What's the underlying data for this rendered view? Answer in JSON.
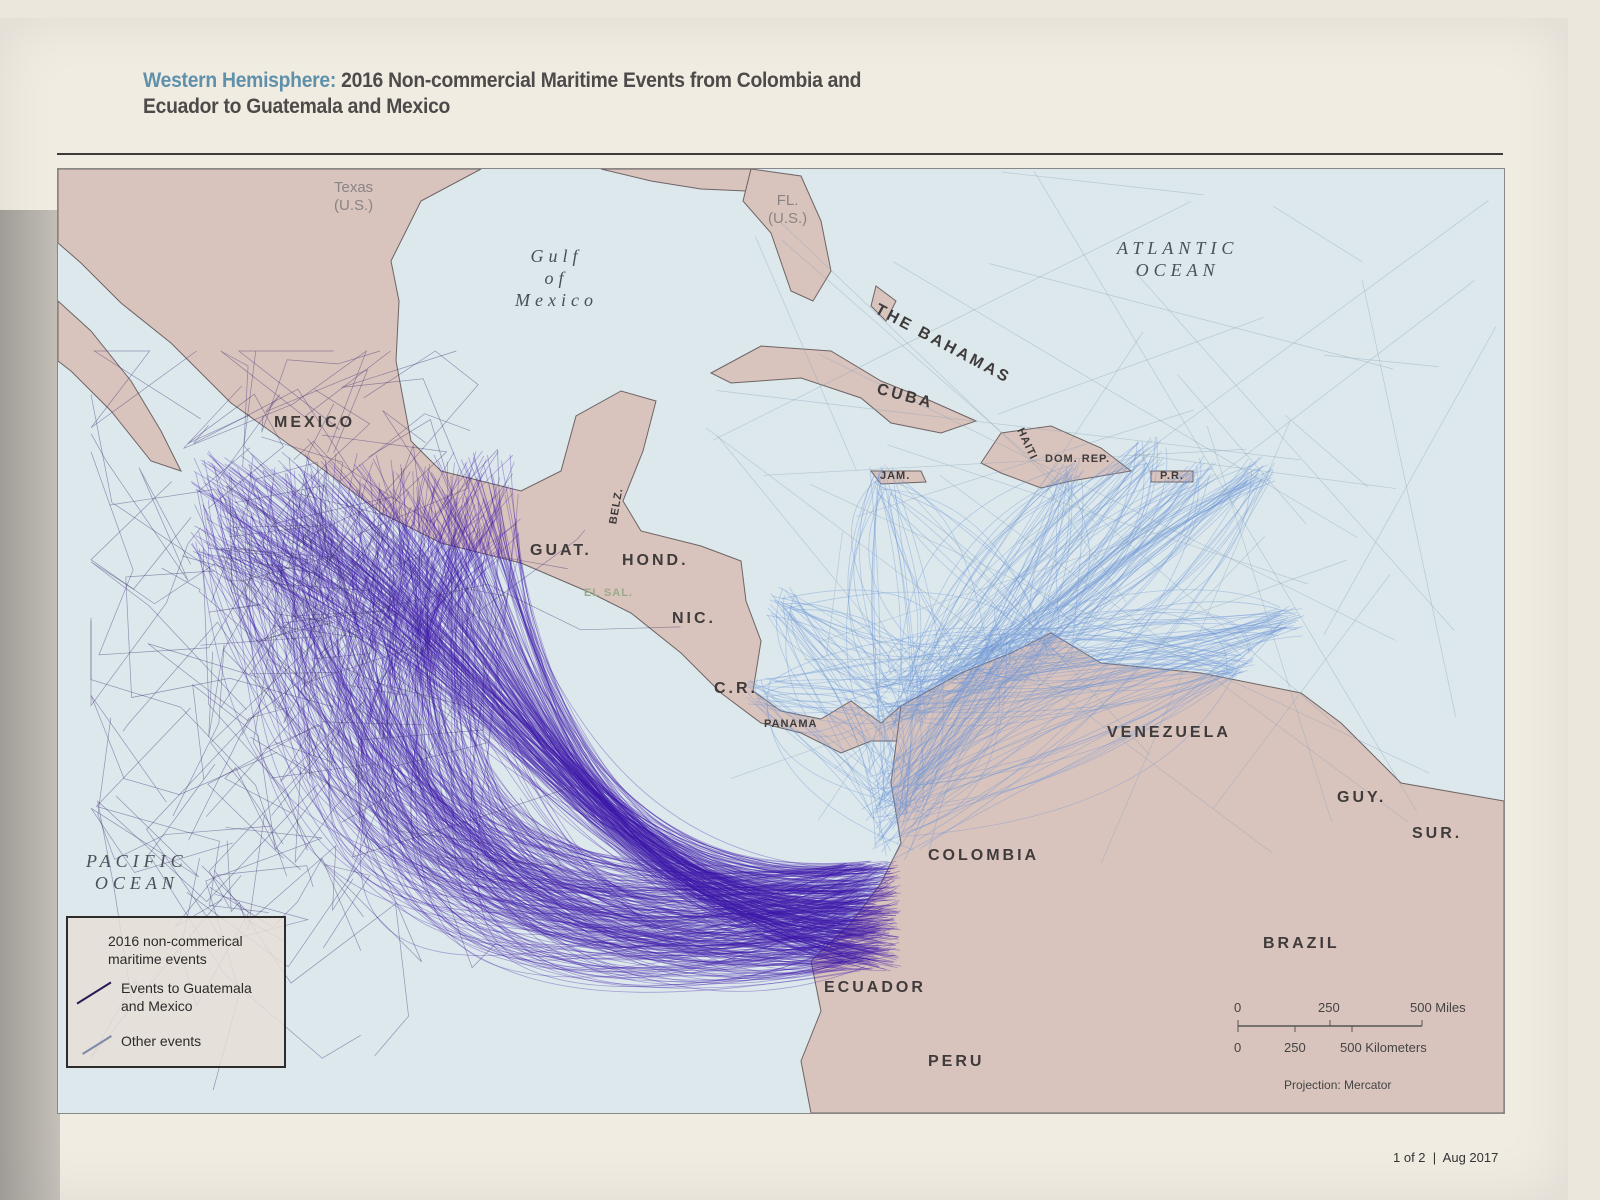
{
  "title": {
    "highlight": "Western Hemisphere:",
    "line1": "2016 Non-commercial Maritime Events from Colombia and",
    "line2": "Ecuador to Guatemala and Mexico"
  },
  "colors": {
    "title_accent": "#5f91ab",
    "target_events": "#3d16a8",
    "other_events": "#6f97d6",
    "land": "#d9c3bd",
    "ocean": "#dce8ec"
  },
  "countries": {
    "mexico": "MEXICO",
    "guat": "GUAT.",
    "belz": "BELZ.",
    "hond": "HOND.",
    "elsal": "EL SAL.",
    "nic": "NIC.",
    "cr": "C.R.",
    "panama": "PANAMA",
    "cuba": "CUBA",
    "bahamas": "THE BAHAMAS",
    "jam": "JAM.",
    "haiti": "HAITI",
    "domrep": "DOM. REP.",
    "pr": "P.R.",
    "venezuela": "VENEZUELA",
    "colombia": "COLOMBIA",
    "ecuador": "ECUADOR",
    "peru": "PERU",
    "brazil": "BRAZIL",
    "guy": "GUY.",
    "sur": "SUR."
  },
  "us": {
    "texas": "Texas\n(U.S.)",
    "texas_l1": "Texas",
    "texas_l2": "(U.S.)",
    "fl_l1": "FL.",
    "fl_l2": "(U.S.)"
  },
  "oceans": {
    "gulf_l1": "Gulf",
    "gulf_l2": "of",
    "gulf_l3": "Mexico",
    "atlantic_l1": "ATLANTIC",
    "atlantic_l2": "OCEAN",
    "pacific_l1": "PACIFIC",
    "pacific_l2": "OCEAN"
  },
  "legend": {
    "heading_l1": "2016 non-commerical",
    "heading_l2": "maritime events",
    "item1_l1": "Events to Guatemala",
    "item1_l2": "and Mexico",
    "item2": "Other events"
  },
  "scale": {
    "miles": [
      "0",
      "250",
      "500 Miles"
    ],
    "km": [
      "0",
      "250",
      "500 Kilometers"
    ],
    "projection": "Projection: Mercator"
  },
  "footer": {
    "page": "1 of 2",
    "sep": "|",
    "date": "Aug 2017"
  }
}
